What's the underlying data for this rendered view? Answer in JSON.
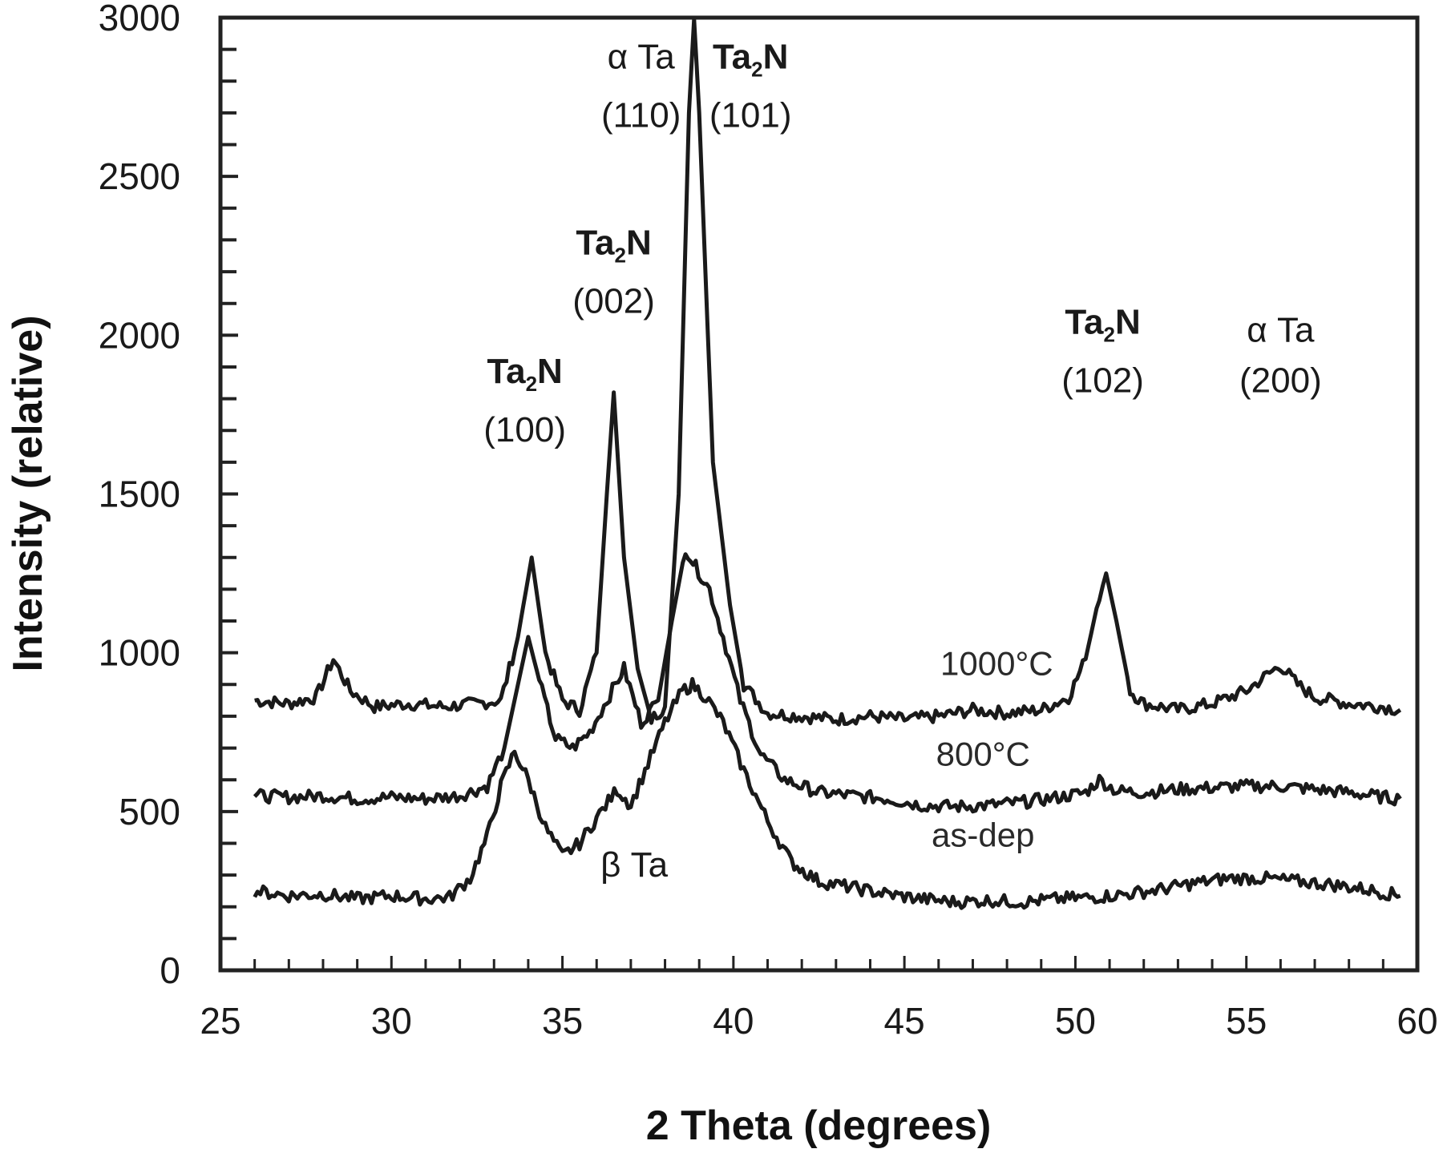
{
  "chart_data": {
    "type": "line",
    "title": "",
    "xlabel": "2 Theta (degrees)",
    "ylabel": "Intensity (relative)",
    "xlim": [
      25,
      60
    ],
    "ylim": [
      0,
      3000
    ],
    "xticks": [
      25,
      30,
      35,
      40,
      45,
      50,
      55,
      60
    ],
    "yticks": [
      0,
      500,
      1000,
      1500,
      2000,
      2500,
      3000
    ],
    "x_minor_step": 1,
    "y_minor_step": 100,
    "grid": false,
    "legend": "none (inline labels)",
    "series": [
      {
        "name": "1000°C",
        "points": [
          [
            26.0,
            850
          ],
          [
            27.0,
            840
          ],
          [
            27.8,
            860
          ],
          [
            28.3,
            980
          ],
          [
            28.8,
            880
          ],
          [
            29.5,
            830
          ],
          [
            30.5,
            840
          ],
          [
            31.5,
            830
          ],
          [
            32.5,
            840
          ],
          [
            33.2,
            850
          ],
          [
            33.7,
            1050
          ],
          [
            34.1,
            1300
          ],
          [
            34.5,
            1000
          ],
          [
            35.0,
            850
          ],
          [
            35.5,
            820
          ],
          [
            36.0,
            1000
          ],
          [
            36.3,
            1500
          ],
          [
            36.5,
            1820
          ],
          [
            36.8,
            1300
          ],
          [
            37.2,
            950
          ],
          [
            37.6,
            790
          ],
          [
            38.0,
            830
          ],
          [
            38.4,
            1500
          ],
          [
            38.7,
            2700
          ],
          [
            38.85,
            3000
          ],
          [
            39.0,
            2700
          ],
          [
            39.4,
            1600
          ],
          [
            39.9,
            1150
          ],
          [
            40.3,
            900
          ],
          [
            41.0,
            810
          ],
          [
            42.0,
            800
          ],
          [
            43.0,
            790
          ],
          [
            44.0,
            800
          ],
          [
            45.0,
            790
          ],
          [
            46.0,
            800
          ],
          [
            47.0,
            820
          ],
          [
            48.0,
            810
          ],
          [
            49.0,
            820
          ],
          [
            49.8,
            860
          ],
          [
            50.3,
            980
          ],
          [
            50.7,
            1180
          ],
          [
            50.9,
            1250
          ],
          [
            51.2,
            1100
          ],
          [
            51.6,
            880
          ],
          [
            52.0,
            840
          ],
          [
            53.0,
            820
          ],
          [
            54.0,
            840
          ],
          [
            55.0,
            880
          ],
          [
            55.6,
            930
          ],
          [
            56.0,
            960
          ],
          [
            56.5,
            900
          ],
          [
            57.0,
            860
          ],
          [
            58.0,
            840
          ],
          [
            59.0,
            830
          ],
          [
            59.5,
            820
          ]
        ]
      },
      {
        "name": "800°C",
        "points": [
          [
            26.0,
            550
          ],
          [
            27.0,
            545
          ],
          [
            28.0,
            550
          ],
          [
            29.0,
            540
          ],
          [
            30.0,
            545
          ],
          [
            31.0,
            540
          ],
          [
            32.0,
            550
          ],
          [
            32.8,
            580
          ],
          [
            33.3,
            700
          ],
          [
            33.7,
            900
          ],
          [
            34.0,
            1050
          ],
          [
            34.4,
            880
          ],
          [
            34.8,
            730
          ],
          [
            35.3,
            700
          ],
          [
            35.8,
            750
          ],
          [
            36.3,
            850
          ],
          [
            36.8,
            950
          ],
          [
            37.3,
            780
          ],
          [
            37.8,
            850
          ],
          [
            38.2,
            1100
          ],
          [
            38.6,
            1330
          ],
          [
            38.9,
            1270
          ],
          [
            39.3,
            1200
          ],
          [
            39.7,
            1050
          ],
          [
            40.2,
            850
          ],
          [
            40.8,
            680
          ],
          [
            41.5,
            600
          ],
          [
            42.5,
            560
          ],
          [
            43.5,
            550
          ],
          [
            44.5,
            540
          ],
          [
            45.5,
            520
          ],
          [
            46.5,
            515
          ],
          [
            47.5,
            520
          ],
          [
            48.5,
            530
          ],
          [
            49.5,
            545
          ],
          [
            50.3,
            560
          ],
          [
            50.7,
            600
          ],
          [
            51.2,
            565
          ],
          [
            52.0,
            560
          ],
          [
            53.0,
            570
          ],
          [
            54.0,
            575
          ],
          [
            55.0,
            580
          ],
          [
            56.0,
            580
          ],
          [
            57.0,
            570
          ],
          [
            58.0,
            560
          ],
          [
            59.0,
            545
          ],
          [
            59.5,
            540
          ]
        ]
      },
      {
        "name": "as-dep",
        "points": [
          [
            26.0,
            250
          ],
          [
            27.0,
            235
          ],
          [
            28.0,
            240
          ],
          [
            29.0,
            225
          ],
          [
            30.0,
            235
          ],
          [
            31.0,
            225
          ],
          [
            31.7,
            230
          ],
          [
            32.3,
            290
          ],
          [
            32.8,
            420
          ],
          [
            33.2,
            580
          ],
          [
            33.6,
            690
          ],
          [
            34.0,
            600
          ],
          [
            34.5,
            450
          ],
          [
            35.0,
            360
          ],
          [
            35.5,
            400
          ],
          [
            36.0,
            480
          ],
          [
            36.6,
            570
          ],
          [
            37.0,
            520
          ],
          [
            37.5,
            650
          ],
          [
            38.0,
            780
          ],
          [
            38.5,
            880
          ],
          [
            38.8,
            900
          ],
          [
            39.2,
            860
          ],
          [
            39.7,
            780
          ],
          [
            40.3,
            630
          ],
          [
            41.0,
            470
          ],
          [
            41.7,
            340
          ],
          [
            42.5,
            280
          ],
          [
            43.5,
            260
          ],
          [
            44.5,
            240
          ],
          [
            45.5,
            225
          ],
          [
            46.5,
            215
          ],
          [
            47.5,
            220
          ],
          [
            48.5,
            215
          ],
          [
            49.5,
            225
          ],
          [
            50.5,
            230
          ],
          [
            51.5,
            240
          ],
          [
            52.5,
            255
          ],
          [
            53.5,
            275
          ],
          [
            54.5,
            290
          ],
          [
            55.5,
            290
          ],
          [
            56.5,
            280
          ],
          [
            57.5,
            270
          ],
          [
            58.5,
            255
          ],
          [
            59.5,
            235
          ]
        ]
      }
    ],
    "series_labels": [
      {
        "text": "1000°C",
        "x": 47.7,
        "y": 930
      },
      {
        "text": "800°C",
        "x": 47.3,
        "y": 645
      },
      {
        "text": "as-dep",
        "x": 47.3,
        "y": 390
      }
    ],
    "annotations": [
      {
        "phase": "Ta",
        "prefix": "α ",
        "sub": "",
        "hkl": "(110)",
        "x": 37.3,
        "y1": 2840,
        "y2": 2655,
        "bold": false
      },
      {
        "phase": "Ta",
        "prefix": "",
        "sub": "2",
        "suffix": "N",
        "hkl": "(101)",
        "x": 40.5,
        "y1": 2840,
        "y2": 2655,
        "bold": true
      },
      {
        "phase": "Ta",
        "prefix": "",
        "sub": "2",
        "suffix": "N",
        "hkl": "(002)",
        "x": 36.5,
        "y1": 2255,
        "y2": 2070,
        "bold": true
      },
      {
        "phase": "Ta",
        "prefix": "",
        "sub": "2",
        "suffix": "N",
        "hkl": "(100)",
        "x": 33.9,
        "y1": 1850,
        "y2": 1665,
        "bold": true
      },
      {
        "phase": "Ta",
        "prefix": "",
        "sub": "2",
        "suffix": "N",
        "hkl": "(102)",
        "x": 50.8,
        "y1": 2005,
        "y2": 1820,
        "bold": true
      },
      {
        "phase": "Ta",
        "prefix": "α ",
        "sub": "",
        "hkl": "(200)",
        "x": 56.0,
        "y1": 1980,
        "y2": 1820,
        "bold": false
      },
      {
        "phase": "Ta",
        "prefix": "β ",
        "sub": "",
        "hkl": "",
        "x": 37.1,
        "y1": 295,
        "y2": null,
        "bold": false
      }
    ]
  },
  "axes": {
    "x_title": "2 Theta (degrees)",
    "y_title": "Intensity (relative)"
  },
  "style": {
    "line_color": "#1a1a1a",
    "axis_color": "#222222",
    "background": "#ffffff"
  }
}
